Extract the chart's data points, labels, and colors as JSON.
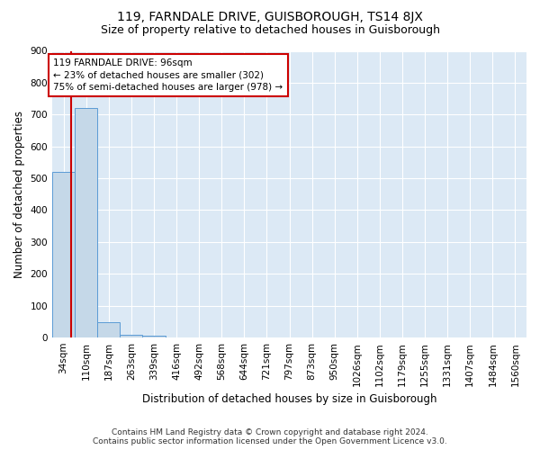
{
  "title": "119, FARNDALE DRIVE, GUISBOROUGH, TS14 8JX",
  "subtitle": "Size of property relative to detached houses in Guisborough",
  "xlabel": "Distribution of detached houses by size in Guisborough",
  "ylabel": "Number of detached properties",
  "categories": [
    "34sqm",
    "110sqm",
    "187sqm",
    "263sqm",
    "339sqm",
    "416sqm",
    "492sqm",
    "568sqm",
    "644sqm",
    "721sqm",
    "797sqm",
    "873sqm",
    "950sqm",
    "1026sqm",
    "1102sqm",
    "1179sqm",
    "1255sqm",
    "1331sqm",
    "1407sqm",
    "1484sqm",
    "1560sqm"
  ],
  "values": [
    520,
    720,
    47,
    10,
    5,
    0,
    0,
    0,
    0,
    0,
    0,
    0,
    0,
    0,
    0,
    0,
    0,
    0,
    0,
    0,
    0
  ],
  "bar_color": "#c5d8e8",
  "bar_edge_color": "#5b9bd5",
  "annotation_line1": "119 FARNDALE DRIVE: 96sqm",
  "annotation_line2": "← 23% of detached houses are smaller (302)",
  "annotation_line3": "75% of semi-detached houses are larger (978) →",
  "annotation_box_color": "#ffffff",
  "annotation_box_edge": "#cc0000",
  "property_line_color": "#cc0000",
  "ylim": [
    0,
    900
  ],
  "yticks": [
    0,
    100,
    200,
    300,
    400,
    500,
    600,
    700,
    800,
    900
  ],
  "background_color": "#dce9f5",
  "footer_line1": "Contains HM Land Registry data © Crown copyright and database right 2024.",
  "footer_line2": "Contains public sector information licensed under the Open Government Licence v3.0.",
  "title_fontsize": 10,
  "subtitle_fontsize": 9,
  "xlabel_fontsize": 8.5,
  "ylabel_fontsize": 8.5,
  "tick_fontsize": 7.5,
  "annotation_fontsize": 7.5,
  "footer_fontsize": 6.5
}
